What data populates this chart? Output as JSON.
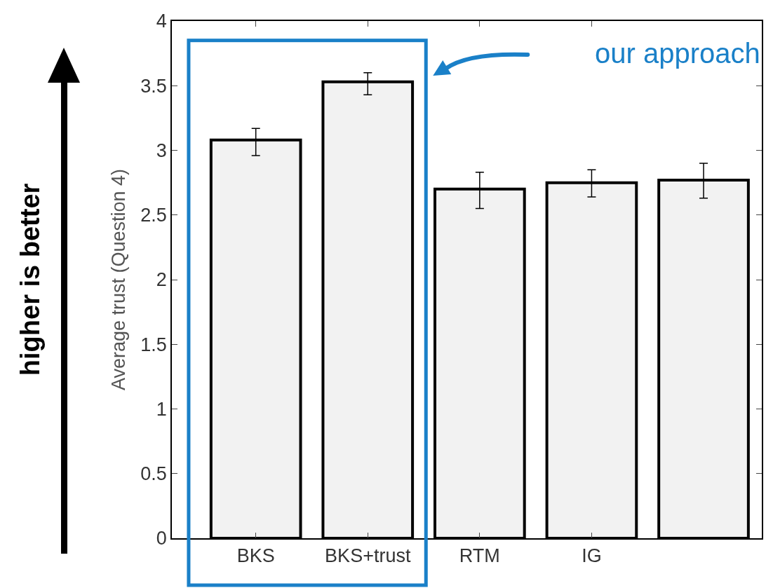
{
  "chart_data": {
    "type": "bar",
    "ylabel": "Average trust (Question 4)",
    "categories": [
      "BKS",
      "BKS+trust",
      "RTM",
      "IG",
      null
    ],
    "values": [
      3.08,
      3.53,
      2.7,
      2.75,
      2.77
    ],
    "errors": [
      [
        2.96,
        3.17
      ],
      [
        3.43,
        3.6
      ],
      [
        2.55,
        2.83
      ],
      [
        2.64,
        2.85
      ],
      [
        2.63,
        2.9
      ]
    ],
    "color": "#f2f2f2",
    "ylim": [
      0,
      4
    ],
    "yticks": [
      0,
      0.5,
      1,
      1.5,
      2,
      2.5,
      3,
      3.5,
      4
    ],
    "grid": false,
    "annotations": [
      "higher is better",
      "our approach"
    ]
  }
}
